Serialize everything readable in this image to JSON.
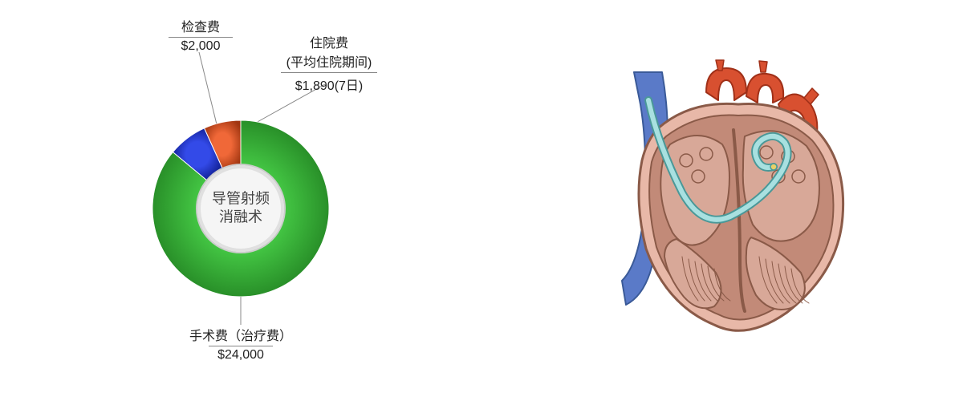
{
  "chart": {
    "type": "donut",
    "center_label_line1": "导管射频",
    "center_label_line2": "消融术",
    "center_label_fontsize": 18,
    "center_label_color": "#444444",
    "inner_radius": 55,
    "outer_radius": 110,
    "inner_hole_fill": "#f5f5f5",
    "inner_hole_stroke": "#cccccc",
    "background_color": "#ffffff",
    "slices": [
      {
        "id": "surgery",
        "label": "手术费（治疗费）",
        "value_text": "$24,000",
        "value": 24000,
        "color": "#2aa22a",
        "gradient_light": "#44c744",
        "gradient_dark": "#1e7a1e"
      },
      {
        "id": "exam",
        "label": "检查费",
        "value_text": "$2,000",
        "value": 2000,
        "color": "#1020c0",
        "gradient_light": "#334ae8",
        "gradient_dark": "#0a1680"
      },
      {
        "id": "hospital",
        "label_line1": "住院费",
        "label_line2": "(平均住院期间)",
        "value_text": "$1,890(7日)",
        "value": 1890,
        "color": "#d44a18",
        "gradient_light": "#f06838",
        "gradient_dark": "#a03510"
      }
    ],
    "start_angle_deg": -90,
    "leader_color": "#888888"
  },
  "illustration": {
    "name": "heart-catheter-ablation",
    "heart_fill": "#e8b8a8",
    "heart_stroke": "#8a5a48",
    "muscle_fill": "#c28a78",
    "chamber_fill": "#d8a898",
    "vein_fill": "#5a7ac8",
    "vein_stroke": "#3a5a98",
    "artery_fill": "#d85030",
    "artery_stroke": "#a03018",
    "catheter_fill": "#a8e0e0",
    "catheter_stroke": "#4a9898",
    "catheter_tip": "#e8d068"
  }
}
